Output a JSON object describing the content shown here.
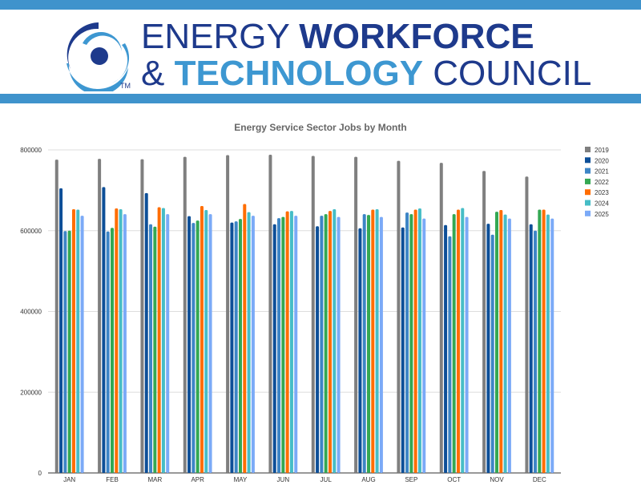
{
  "header": {
    "line1_light": "ENERGY",
    "line1_bold": "WORKFORCE",
    "line2_amp": "&",
    "line2_bold": "TECHNOLOGY",
    "line2_light": "COUNCIL",
    "trademark": "TM",
    "colors": {
      "band": "#3f93cc",
      "navy": "#1e3a8c",
      "light_blue": "#3d97d1"
    }
  },
  "chart_data": {
    "type": "bar",
    "title": "Energy Service Sector Jobs by Month",
    "xlabel": "",
    "ylabel": "",
    "ylim": [
      0,
      800000
    ],
    "yticks": [
      0,
      200000,
      400000,
      600000,
      800000
    ],
    "grid": true,
    "legend_position": "right",
    "categories": [
      "JAN",
      "FEB",
      "MAR",
      "APR",
      "MAY",
      "JUN",
      "JUL",
      "AUG",
      "SEP",
      "OCT",
      "NOV",
      "DEC"
    ],
    "series": [
      {
        "name": "2019",
        "color": "#7f7f7f",
        "values": [
          776000,
          778000,
          777000,
          783000,
          787000,
          788000,
          785000,
          783000,
          773000,
          768000,
          748000,
          734000
        ]
      },
      {
        "name": "2020",
        "color": "#0d4f98",
        "values": [
          705000,
          708000,
          693000,
          636000,
          620000,
          616000,
          611000,
          606000,
          608000,
          614000,
          617000,
          616000
        ]
      },
      {
        "name": "2021",
        "color": "#3d85c6",
        "values": [
          599000,
          598000,
          616000,
          619000,
          623000,
          631000,
          637000,
          641000,
          645000,
          586000,
          590000,
          600000
        ]
      },
      {
        "name": "2022",
        "color": "#34a853",
        "values": [
          600000,
          607000,
          610000,
          625000,
          629000,
          634000,
          641000,
          639000,
          641000,
          641000,
          647000,
          652000
        ]
      },
      {
        "name": "2023",
        "color": "#ff6d01",
        "values": [
          653000,
          655000,
          658000,
          661000,
          666000,
          648000,
          649000,
          652000,
          652000,
          652000,
          651000,
          652000
        ]
      },
      {
        "name": "2024",
        "color": "#46bdc6",
        "values": [
          652000,
          653000,
          656000,
          651000,
          646000,
          649000,
          653000,
          653000,
          655000,
          656000,
          640000,
          640000
        ]
      },
      {
        "name": "2025",
        "color": "#7baaf7",
        "values": [
          637000,
          641000,
          641000,
          641000,
          637000,
          637000,
          634000,
          634000,
          630000,
          634000,
          630000,
          630000
        ]
      }
    ]
  }
}
